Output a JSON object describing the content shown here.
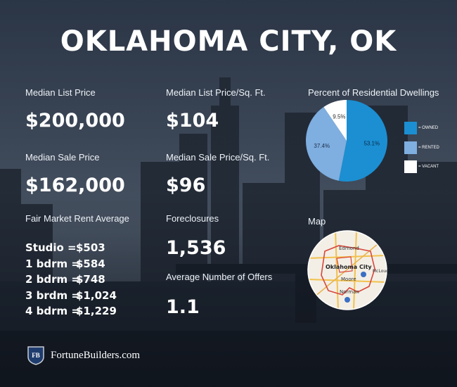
{
  "title": "OKLAHOMA CITY, OK",
  "stats": {
    "median_list_price": {
      "label": "Median List Price",
      "value": "$200,000"
    },
    "median_sale_price": {
      "label": "Median Sale Price",
      "value": "$162,000"
    },
    "median_list_price_sqft": {
      "label": "Median List Price/Sq. Ft.",
      "value": "$104"
    },
    "median_sale_price_sqft": {
      "label": "Median Sale Price/Sq. Ft.",
      "value": "$96"
    },
    "foreclosures": {
      "label": "Foreclosures",
      "value": "1,536"
    },
    "avg_offers": {
      "label": "Average Number of Offers",
      "value": "1.1"
    }
  },
  "rent": {
    "label": "Fair Market Rent Average",
    "rows": [
      {
        "key": "Studio =",
        "value": "$503"
      },
      {
        "key": "1 bdrm =",
        "value": "$584"
      },
      {
        "key": "2 bdrm =",
        "value": "$748"
      },
      {
        "key": "3 brdm =",
        "value": "$1,024"
      },
      {
        "key": "4 bdrm =",
        "value": "$1,229"
      }
    ]
  },
  "chart_data": {
    "type": "pie",
    "title": "Percent of Residential Dwellings",
    "slices": [
      {
        "name": "= OWNED",
        "value": 53.1,
        "label": "53.1%",
        "color": "#1b8fd2"
      },
      {
        "name": "= RENTED",
        "value": 37.4,
        "label": "37.4%",
        "color": "#7faee0"
      },
      {
        "name": "= VACANT",
        "value": 9.5,
        "label": "9.5%",
        "color": "#ffffff"
      }
    ],
    "legend": "right"
  },
  "map": {
    "label": "Map",
    "places": [
      "Edmond",
      "Oklahoma City",
      "McLoud",
      "Moore",
      "Norman"
    ]
  },
  "footer": {
    "brand": "FortuneBuilders.com",
    "logo_text": "FB"
  }
}
